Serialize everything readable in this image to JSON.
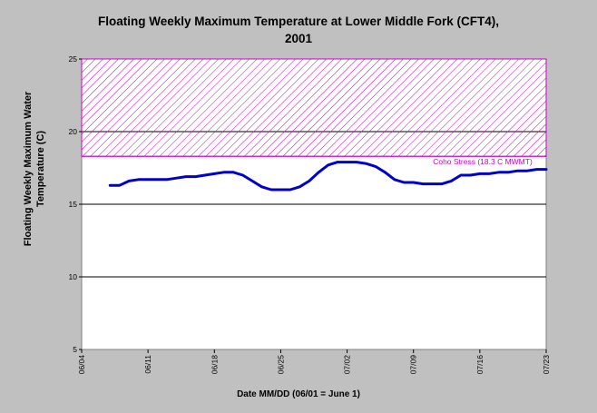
{
  "chart_data": {
    "type": "line",
    "title_lines": [
      "Floating Weekly Maximum Temperature at Lower Middle Fork (CFT4),",
      "2001"
    ],
    "ylabel_lines": [
      "Floating Weekly Maximum Water",
      "Temperature (C)"
    ],
    "xlabel": "Date MM/DD (06/01 = June 1)",
    "xlim": [
      "06/04",
      "07/23"
    ],
    "ylim": [
      5,
      25
    ],
    "x_ticks": [
      "06/04",
      "06/11",
      "06/18",
      "06/25",
      "07/02",
      "07/09",
      "07/16",
      "07/23"
    ],
    "y_ticks": [
      5,
      10,
      15,
      20,
      25
    ],
    "grid": "horizontal",
    "threshold": {
      "label": "Coho Stress (18.3 C MWMT)",
      "value": 18.3,
      "color": "#cc00cc"
    },
    "series": [
      {
        "color": "#0000cc",
        "x": [
          "06/07",
          "06/08",
          "06/09",
          "06/10",
          "06/11",
          "06/12",
          "06/13",
          "06/14",
          "06/15",
          "06/16",
          "06/17",
          "06/18",
          "06/19",
          "06/20",
          "06/21",
          "06/22",
          "06/23",
          "06/24",
          "06/25",
          "06/26",
          "06/27",
          "06/28",
          "06/29",
          "06/30",
          "07/01",
          "07/02",
          "07/03",
          "07/04",
          "07/05",
          "07/06",
          "07/07",
          "07/08",
          "07/09",
          "07/10",
          "07/11",
          "07/12",
          "07/13",
          "07/14",
          "07/15",
          "07/16",
          "07/17",
          "07/18",
          "07/19",
          "07/20",
          "07/21",
          "07/22",
          "07/23"
        ],
        "values": [
          16.3,
          16.3,
          16.6,
          16.7,
          16.7,
          16.7,
          16.7,
          16.8,
          16.9,
          16.9,
          17.0,
          17.1,
          17.2,
          17.2,
          17.0,
          16.6,
          16.2,
          16.0,
          16.0,
          16.0,
          16.2,
          16.6,
          17.2,
          17.7,
          17.9,
          17.9,
          17.9,
          17.8,
          17.6,
          17.2,
          16.7,
          16.5,
          16.5,
          16.4,
          16.4,
          16.4,
          16.6,
          17.0,
          17.0,
          17.1,
          17.1,
          17.2,
          17.2,
          17.3,
          17.3,
          17.4,
          17.4
        ]
      }
    ]
  }
}
